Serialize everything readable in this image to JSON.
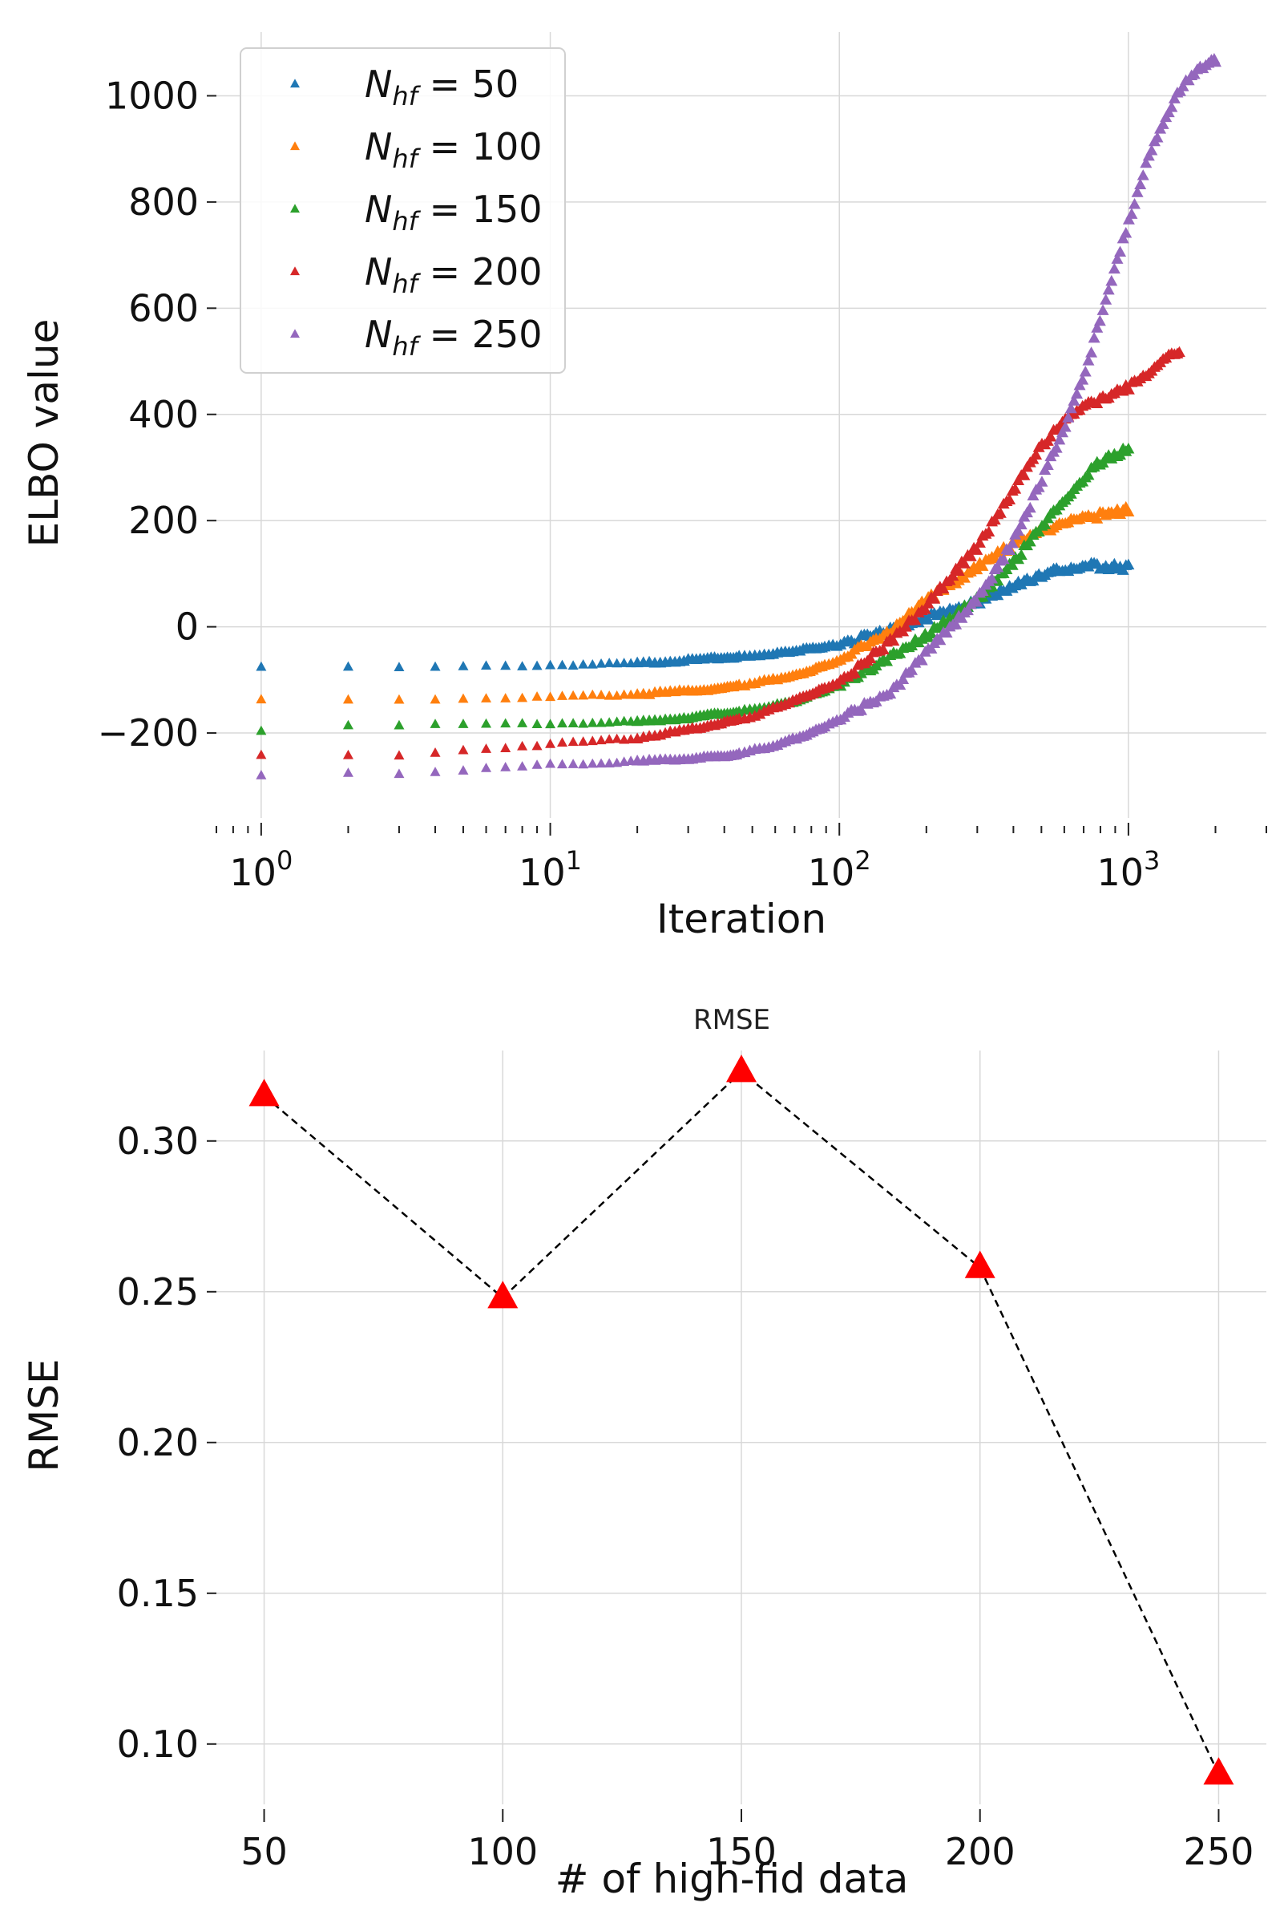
{
  "chart_data": [
    {
      "type": "scatter",
      "title": "",
      "xlabel": "Iteration",
      "ylabel": "ELBO value",
      "xscale": "log",
      "xlim": [
        0.7,
        3000
      ],
      "ylim": [
        -360,
        1120
      ],
      "xticks": [
        1,
        10,
        100,
        1000
      ],
      "xtick_labels": [
        {
          "base": "10",
          "exp": "0"
        },
        {
          "base": "10",
          "exp": "1"
        },
        {
          "base": "10",
          "exp": "2"
        },
        {
          "base": "10",
          "exp": "3"
        }
      ],
      "yticks": [
        -200,
        0,
        200,
        400,
        600,
        800,
        1000
      ],
      "ytick_labels": [
        "−200",
        "0",
        "200",
        "400",
        "600",
        "800",
        "1000"
      ],
      "grid": true,
      "marker": "triangle",
      "legend": {
        "position": "top-left",
        "entries": [
          {
            "sym": "N",
            "sub": "hf",
            "eq": " = 50"
          },
          {
            "sym": "N",
            "sub": "hf",
            "eq": " = 100"
          },
          {
            "sym": "N",
            "sub": "hf",
            "eq": " = 150"
          },
          {
            "sym": "N",
            "sub": "hf",
            "eq": " = 200"
          },
          {
            "sym": "N",
            "sub": "hf",
            "eq": " = 250"
          }
        ]
      },
      "series": [
        {
          "name": "N_hf = 50",
          "color": "#1f77b4",
          "max_iter": 1000,
          "points": [
            [
              1,
              -78
            ],
            [
              2,
              -76
            ],
            [
              3,
              -78
            ],
            [
              5,
              -76
            ],
            [
              10,
              -73
            ],
            [
              20,
              -70
            ],
            [
              50,
              -56
            ],
            [
              100,
              -35
            ],
            [
              150,
              -8
            ],
            [
              200,
              15
            ],
            [
              300,
              45
            ],
            [
              400,
              75
            ],
            [
              500,
              95
            ],
            [
              600,
              108
            ],
            [
              700,
              115
            ],
            [
              800,
              113
            ],
            [
              1000,
              110
            ]
          ]
        },
        {
          "name": "N_hf = 100",
          "color": "#ff7f0e",
          "max_iter": 1000,
          "points": [
            [
              1,
              -137
            ],
            [
              2,
              -137
            ],
            [
              3,
              -137
            ],
            [
              5,
              -136
            ],
            [
              10,
              -133
            ],
            [
              20,
              -128
            ],
            [
              40,
              -117
            ],
            [
              70,
              -93
            ],
            [
              100,
              -65
            ],
            [
              150,
              -10
            ],
            [
              200,
              48
            ],
            [
              300,
              112
            ],
            [
              400,
              155
            ],
            [
              500,
              180
            ],
            [
              600,
              193
            ],
            [
              800,
              210
            ],
            [
              1000,
              220
            ]
          ]
        },
        {
          "name": "N_hf = 150",
          "color": "#2ca02c",
          "max_iter": 1000,
          "points": [
            [
              1,
              -195
            ],
            [
              2,
              -187
            ],
            [
              3,
              -187
            ],
            [
              5,
              -185
            ],
            [
              10,
              -183
            ],
            [
              20,
              -180
            ],
            [
              30,
              -172
            ],
            [
              50,
              -158
            ],
            [
              70,
              -142
            ],
            [
              100,
              -110
            ],
            [
              150,
              -58
            ],
            [
              200,
              -18
            ],
            [
              300,
              50
            ],
            [
              400,
              120
            ],
            [
              500,
              188
            ],
            [
              600,
              240
            ],
            [
              700,
              280
            ],
            [
              800,
              310
            ],
            [
              1000,
              333
            ]
          ]
        },
        {
          "name": "N_hf = 200",
          "color": "#d62728",
          "max_iter": 1500,
          "points": [
            [
              1,
              -243
            ],
            [
              2,
              -243
            ],
            [
              3,
              -243
            ],
            [
              5,
              -233
            ],
            [
              10,
              -222
            ],
            [
              20,
              -210
            ],
            [
              30,
              -195
            ],
            [
              50,
              -170
            ],
            [
              70,
              -140
            ],
            [
              100,
              -105
            ],
            [
              150,
              -30
            ],
            [
              200,
              38
            ],
            [
              300,
              150
            ],
            [
              400,
              255
            ],
            [
              500,
              340
            ],
            [
              600,
              385
            ],
            [
              700,
              412
            ],
            [
              800,
              428
            ],
            [
              1000,
              450
            ],
            [
              1200,
              480
            ],
            [
              1400,
              510
            ],
            [
              1500,
              515
            ]
          ]
        },
        {
          "name": "N_hf = 250",
          "color": "#9467bd",
          "max_iter": 2000,
          "points": [
            [
              1,
              -280
            ],
            [
              2,
              -275
            ],
            [
              3,
              -278
            ],
            [
              5,
              -272
            ],
            [
              10,
              -260
            ],
            [
              20,
              -255
            ],
            [
              40,
              -245
            ],
            [
              60,
              -225
            ],
            [
              80,
              -200
            ],
            [
              100,
              -175
            ],
            [
              150,
              -125
            ],
            [
              200,
              -50
            ],
            [
              300,
              50
            ],
            [
              400,
              160
            ],
            [
              500,
              275
            ],
            [
              600,
              375
            ],
            [
              700,
              470
            ],
            [
              800,
              580
            ],
            [
              1000,
              760
            ],
            [
              1200,
              900
            ],
            [
              1400,
              980
            ],
            [
              1600,
              1030
            ],
            [
              1800,
              1055
            ],
            [
              2000,
              1065
            ]
          ]
        }
      ]
    },
    {
      "type": "line",
      "title": "RMSE",
      "xlabel": "# of high-fid data",
      "ylabel": "RMSE",
      "xlim": [
        40,
        260
      ],
      "ylim": [
        0.08,
        0.33
      ],
      "xticks": [
        50,
        100,
        150,
        200,
        250
      ],
      "xtick_labels": [
        "50",
        "100",
        "150",
        "200",
        "250"
      ],
      "yticks": [
        0.1,
        0.15,
        0.2,
        0.25,
        0.3
      ],
      "ytick_labels": [
        "0.10",
        "0.15",
        "0.20",
        "0.25",
        "0.30"
      ],
      "grid": true,
      "marker": "triangle",
      "marker_color": "#ff0000",
      "line_style": "dashed",
      "line_color": "#000000",
      "x": [
        50,
        100,
        150,
        200,
        250
      ],
      "y": [
        0.315,
        0.248,
        0.323,
        0.258,
        0.09
      ]
    }
  ]
}
